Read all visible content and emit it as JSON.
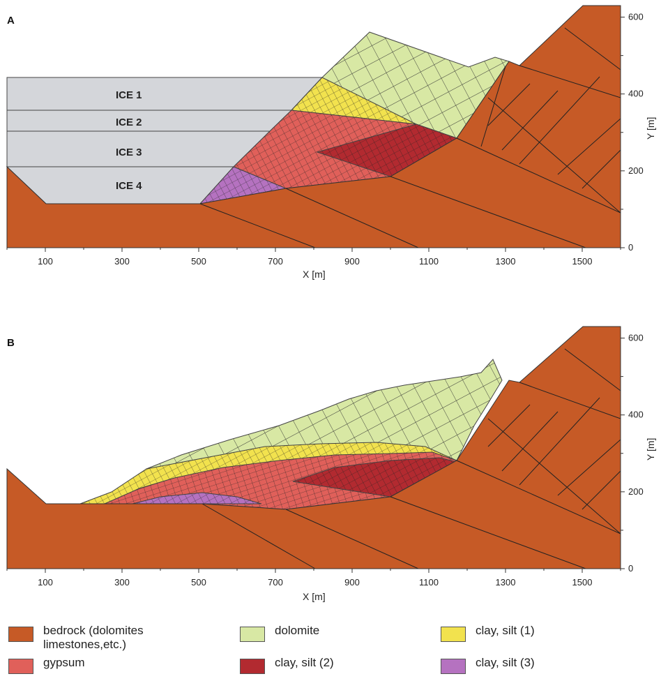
{
  "colors": {
    "bedrock": "#c65a26",
    "dolomite": "#d8e8a4",
    "clay1": "#f2e24e",
    "gypsum": "#e0605a",
    "clay2": "#b22a30",
    "clay3": "#b572c0",
    "ice": "#d4d6da"
  },
  "panelA": {
    "letter": "A",
    "x_label": "X [m]",
    "y_label": "Y [m]",
    "x_ticks": [
      "100",
      "300",
      "500",
      "700",
      "900",
      "1100",
      "1300",
      "1500"
    ],
    "y_ticks": [
      "0",
      "200",
      "400",
      "600"
    ],
    "ice_labels": [
      "ICE 1",
      "ICE 2",
      "ICE 3",
      "ICE 4"
    ]
  },
  "panelB": {
    "letter": "B",
    "x_label": "X [m]",
    "y_label": "Y [m]",
    "x_ticks": [
      "100",
      "300",
      "500",
      "700",
      "900",
      "1100",
      "1300",
      "1500"
    ],
    "y_ticks": [
      "0",
      "200",
      "400",
      "600"
    ]
  },
  "legend": {
    "items": [
      {
        "key": "bedrock",
        "label": "bedrock (dolomites\nlimestones,etc.)"
      },
      {
        "key": "dolomite",
        "label": "dolomite"
      },
      {
        "key": "clay1",
        "label": "clay, silt (1)"
      },
      {
        "key": "gypsum",
        "label": "gypsum"
      },
      {
        "key": "clay2",
        "label": "clay, silt (2)"
      },
      {
        "key": "clay3",
        "label": "clay, silt (3)"
      }
    ]
  }
}
